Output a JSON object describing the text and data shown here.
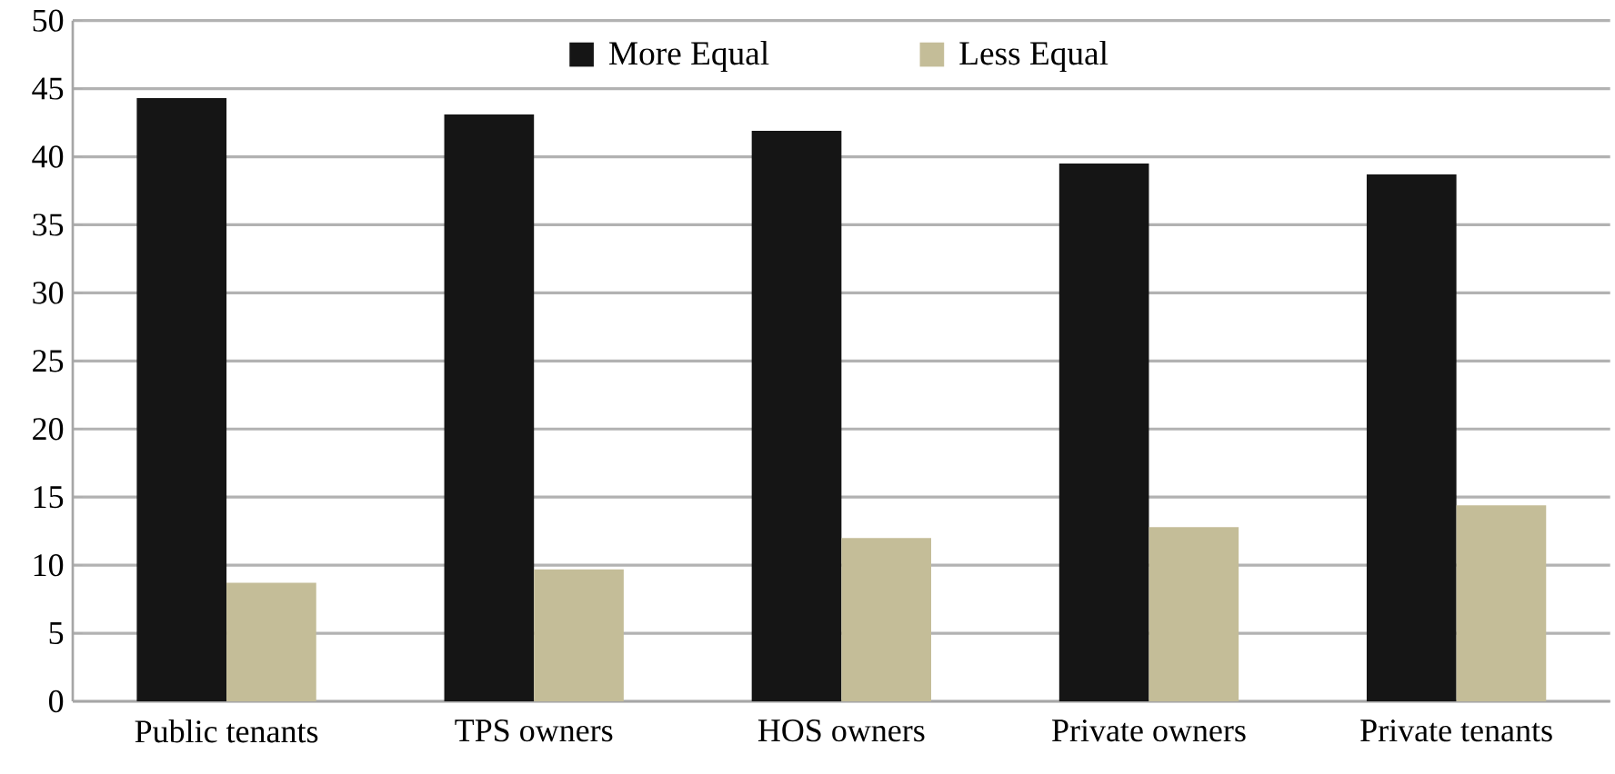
{
  "chart_data": {
    "type": "bar",
    "categories": [
      "Public tenants",
      "TPS owners",
      "HOS owners",
      "Private owners",
      "Private tenants"
    ],
    "series": [
      {
        "name": "More Equal",
        "color": "#151515",
        "values": [
          44.3,
          43.1,
          41.9,
          39.5,
          38.7
        ]
      },
      {
        "name": "Less Equal",
        "color": "#c4bd98",
        "values": [
          8.7,
          9.7,
          12.0,
          12.8,
          14.4
        ]
      }
    ],
    "ylim": [
      0,
      50
    ],
    "yticks": [
      0,
      5,
      10,
      15,
      20,
      25,
      30,
      35,
      40,
      45,
      50
    ],
    "grid": "y",
    "legend": "top"
  }
}
